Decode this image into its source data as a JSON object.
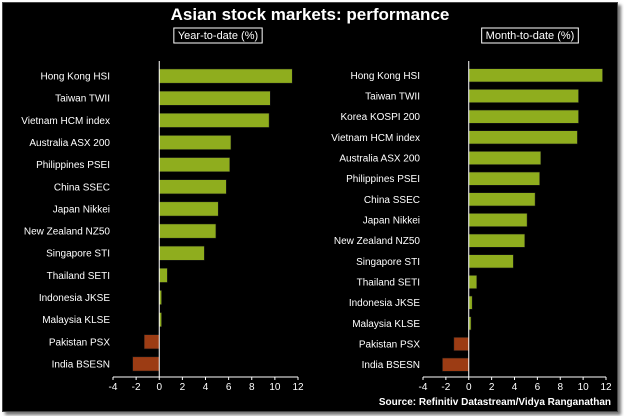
{
  "title": "Asian stock markets: performance",
  "source": "Source: Refinitiv Datastream/Vidya Ranganathan",
  "colors": {
    "background": "#000000",
    "positive_bar": "#8fad1e",
    "negative_bar": "#9c3c14",
    "text": "#ffffff"
  },
  "chart_data": [
    {
      "type": "bar",
      "orientation": "horizontal",
      "title": "Year-to-date (%)",
      "xlim": [
        -4,
        12
      ],
      "xticks": [
        -4,
        -2,
        0,
        2,
        4,
        6,
        8,
        10,
        12
      ],
      "grid": false,
      "categories": [
        "Hong Kong HSI",
        "Taiwan TWII",
        "Vietnam HCM index",
        "Australia ASX 200",
        "Philippines PSEI",
        "China SSEC",
        "Japan Nikkei",
        "New Zealand NZ50",
        "Singapore STI",
        "Thailand SETI",
        "Indonesia JKSE",
        "Malaysia KLSE",
        "Pakistan PSX",
        "India BSESN"
      ],
      "values": [
        11.5,
        9.6,
        9.5,
        6.2,
        6.1,
        5.8,
        5.1,
        4.9,
        3.9,
        0.7,
        0.2,
        0.2,
        -1.3,
        -2.3
      ]
    },
    {
      "type": "bar",
      "orientation": "horizontal",
      "title": "Month-to-date (%)",
      "xlim": [
        -4,
        12
      ],
      "xticks": [
        -4,
        -2,
        0,
        2,
        4,
        6,
        8,
        10,
        12
      ],
      "grid": false,
      "categories": [
        "Hong Kong HSI",
        "Taiwan TWII",
        "Korea KOSPI 200",
        "Vietnam HCM index",
        "Australia ASX 200",
        "Philippines PSEI",
        "China SSEC",
        "Japan Nikkei",
        "New Zealand NZ50",
        "Singapore STI",
        "Thailand SETI",
        "Indonesia JKSE",
        "Malaysia KLSE",
        "Pakistan PSX",
        "India BSESN"
      ],
      "values": [
        11.7,
        9.6,
        9.6,
        9.5,
        6.3,
        6.2,
        5.8,
        5.1,
        4.9,
        3.9,
        0.7,
        0.3,
        0.2,
        -1.3,
        -2.3
      ]
    }
  ]
}
